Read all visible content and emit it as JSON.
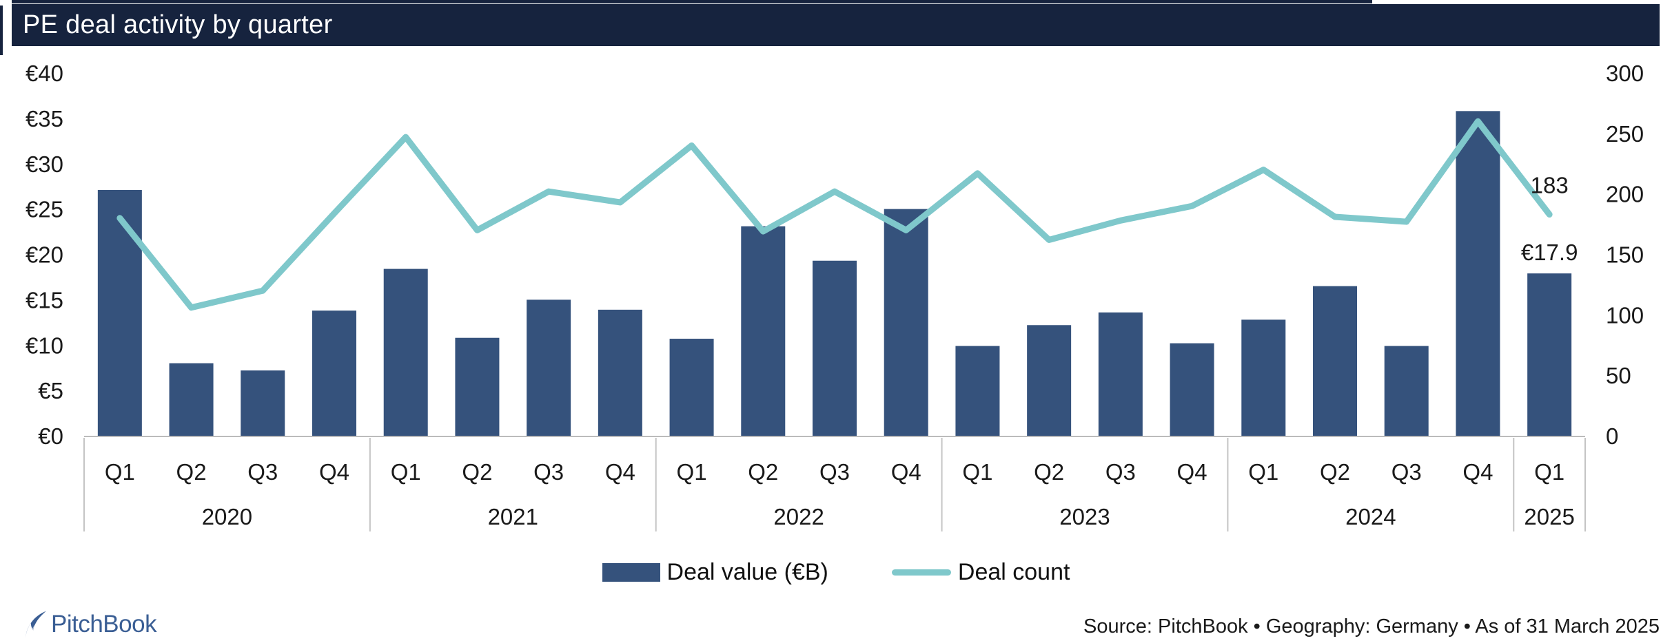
{
  "title_bar": {
    "text": "PE deal activity by quarter",
    "bg": "#16233E",
    "fg": "#FFFFFF"
  },
  "chart_data": {
    "type": "bar+line",
    "quarter_labels": [
      "Q1",
      "Q2",
      "Q3",
      "Q4",
      "Q1",
      "Q2",
      "Q3",
      "Q4",
      "Q1",
      "Q2",
      "Q3",
      "Q4",
      "Q1",
      "Q2",
      "Q3",
      "Q4",
      "Q1",
      "Q2",
      "Q3",
      "Q4",
      "Q1"
    ],
    "years": [
      {
        "label": "2020",
        "span": 4
      },
      {
        "label": "2021",
        "span": 4
      },
      {
        "label": "2022",
        "span": 4
      },
      {
        "label": "2023",
        "span": 4
      },
      {
        "label": "2024",
        "span": 4
      },
      {
        "label": "2025",
        "span": 1
      }
    ],
    "series": [
      {
        "name": "Deal value (€B)",
        "type": "bar",
        "axis": "left",
        "color": "#35527C",
        "values": [
          27.1,
          8.0,
          7.2,
          13.8,
          18.4,
          10.8,
          15.0,
          13.9,
          10.7,
          23.1,
          19.3,
          25.0,
          9.9,
          12.2,
          13.6,
          10.2,
          12.8,
          16.5,
          9.9,
          35.8,
          17.9
        ]
      },
      {
        "name": "Deal count",
        "type": "line",
        "axis": "right",
        "color": "#7FC8CB",
        "values": [
          180,
          106,
          120,
          184,
          247,
          170,
          202,
          193,
          240,
          169,
          202,
          170,
          217,
          162,
          178,
          190,
          220,
          181,
          177,
          260,
          183
        ]
      }
    ],
    "left_axis": {
      "min": 0,
      "max": 40,
      "step": 5,
      "tick_labels": [
        "€0",
        "€5",
        "€10",
        "€15",
        "€20",
        "€25",
        "€30",
        "€35",
        "€40"
      ]
    },
    "right_axis": {
      "min": 0,
      "max": 300,
      "step": 50,
      "tick_labels": [
        "0",
        "50",
        "100",
        "150",
        "200",
        "250",
        "300"
      ]
    },
    "annotations": {
      "count_label": "183",
      "value_label": "€17.9"
    },
    "grid": "off",
    "legend_position": "bottom"
  },
  "legend": {
    "items": [
      {
        "label": "Deal value (€B)",
        "swatch": "bar",
        "color": "#35527C"
      },
      {
        "label": "Deal count",
        "swatch": "line",
        "color": "#7FC8CB"
      }
    ]
  },
  "footer": {
    "logo_text": "PitchBook",
    "logo_color": "#3A5E94",
    "source_text": "Source: PitchBook • Geography: Germany • As of 31 March 2025"
  },
  "colors": {
    "axis_line": "#BBBBBB",
    "separator": "#C4C4C4",
    "tick_text": "#1a1a1a"
  }
}
